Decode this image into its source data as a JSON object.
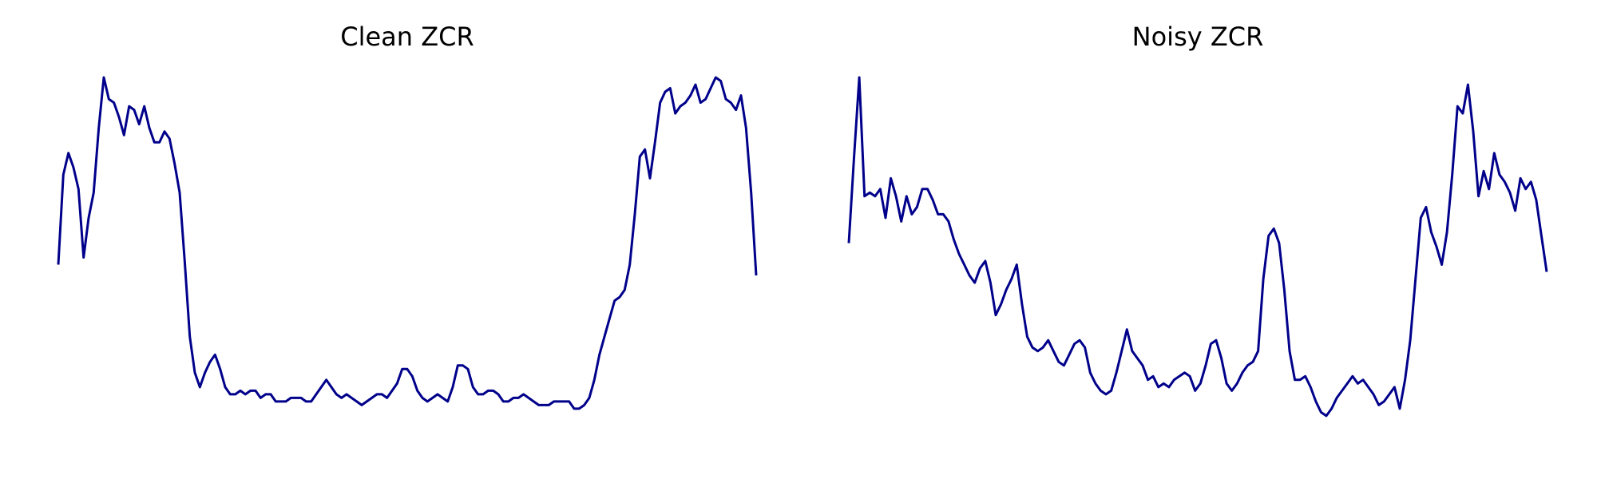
{
  "chart_data": [
    {
      "type": "line",
      "title": "Clean ZCR",
      "xlabel": "",
      "ylabel": "",
      "axes_visible": false,
      "grid": false,
      "line_color": "#00008B",
      "ylim": [
        0,
        1
      ],
      "series": [
        {
          "values": [
            0.48,
            0.73,
            0.79,
            0.75,
            0.69,
            0.5,
            0.61,
            0.68,
            0.86,
            1.0,
            0.94,
            0.93,
            0.89,
            0.84,
            0.92,
            0.91,
            0.87,
            0.92,
            0.86,
            0.82,
            0.82,
            0.85,
            0.83,
            0.76,
            0.68,
            0.49,
            0.28,
            0.18,
            0.14,
            0.18,
            0.21,
            0.23,
            0.19,
            0.14,
            0.12,
            0.12,
            0.13,
            0.12,
            0.13,
            0.13,
            0.11,
            0.12,
            0.12,
            0.1,
            0.1,
            0.1,
            0.11,
            0.11,
            0.11,
            0.1,
            0.1,
            0.12,
            0.14,
            0.16,
            0.14,
            0.12,
            0.11,
            0.12,
            0.11,
            0.1,
            0.09,
            0.1,
            0.11,
            0.12,
            0.12,
            0.11,
            0.13,
            0.15,
            0.19,
            0.19,
            0.17,
            0.13,
            0.11,
            0.1,
            0.11,
            0.12,
            0.11,
            0.1,
            0.14,
            0.2,
            0.2,
            0.19,
            0.14,
            0.12,
            0.12,
            0.13,
            0.13,
            0.12,
            0.1,
            0.1,
            0.11,
            0.11,
            0.12,
            0.11,
            0.1,
            0.09,
            0.09,
            0.09,
            0.1,
            0.1,
            0.1,
            0.1,
            0.08,
            0.08,
            0.09,
            0.11,
            0.16,
            0.23,
            0.28,
            0.33,
            0.38,
            0.39,
            0.41,
            0.48,
            0.62,
            0.78,
            0.8,
            0.72,
            0.82,
            0.93,
            0.96,
            0.97,
            0.9,
            0.92,
            0.93,
            0.95,
            0.98,
            0.93,
            0.94,
            0.97,
            1.0,
            0.99,
            0.94,
            0.93,
            0.91,
            0.95,
            0.86,
            0.68,
            0.45
          ]
        }
      ]
    },
    {
      "type": "line",
      "title": "Noisy ZCR",
      "xlabel": "",
      "ylabel": "",
      "axes_visible": false,
      "grid": false,
      "line_color": "#00008B",
      "ylim": [
        0,
        1
      ],
      "series": [
        {
          "values": [
            0.54,
            0.78,
            1.0,
            0.67,
            0.68,
            0.67,
            0.69,
            0.61,
            0.72,
            0.67,
            0.6,
            0.67,
            0.62,
            0.64,
            0.69,
            0.69,
            0.66,
            0.62,
            0.62,
            0.6,
            0.55,
            0.51,
            0.48,
            0.45,
            0.43,
            0.47,
            0.49,
            0.43,
            0.34,
            0.37,
            0.41,
            0.44,
            0.48,
            0.37,
            0.28,
            0.25,
            0.24,
            0.25,
            0.27,
            0.24,
            0.21,
            0.2,
            0.23,
            0.26,
            0.27,
            0.25,
            0.18,
            0.15,
            0.13,
            0.12,
            0.13,
            0.18,
            0.24,
            0.3,
            0.24,
            0.22,
            0.2,
            0.16,
            0.17,
            0.14,
            0.15,
            0.14,
            0.16,
            0.17,
            0.18,
            0.17,
            0.13,
            0.15,
            0.2,
            0.26,
            0.27,
            0.22,
            0.15,
            0.13,
            0.15,
            0.18,
            0.2,
            0.21,
            0.24,
            0.44,
            0.56,
            0.58,
            0.54,
            0.41,
            0.24,
            0.16,
            0.16,
            0.17,
            0.14,
            0.1,
            0.07,
            0.06,
            0.08,
            0.11,
            0.13,
            0.15,
            0.17,
            0.15,
            0.16,
            0.14,
            0.12,
            0.09,
            0.1,
            0.12,
            0.14,
            0.08,
            0.16,
            0.27,
            0.44,
            0.61,
            0.64,
            0.57,
            0.53,
            0.48,
            0.57,
            0.73,
            0.92,
            0.9,
            0.98,
            0.85,
            0.67,
            0.74,
            0.69,
            0.79,
            0.73,
            0.71,
            0.68,
            0.63,
            0.72,
            0.69,
            0.71,
            0.66,
            0.56,
            0.46
          ]
        }
      ]
    }
  ]
}
